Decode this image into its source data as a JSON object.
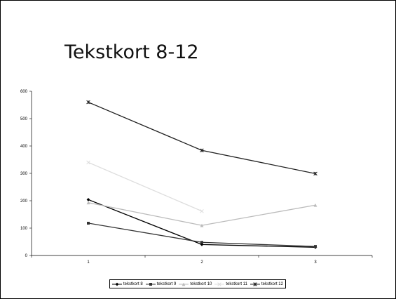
{
  "slide": {
    "title": "Tekstkort 8-12"
  },
  "chart_data": {
    "type": "line",
    "title": "",
    "xlabel": "",
    "ylabel": "",
    "categories": [
      "1",
      "2",
      "3"
    ],
    "ylim": [
      0,
      600
    ],
    "yticks": [
      0,
      100,
      200,
      300,
      400,
      500,
      600
    ],
    "grid": false,
    "legend_position": "bottom",
    "series": [
      {
        "name": "tekstkort 8",
        "values": [
          204,
          40,
          30
        ],
        "color": "#000000",
        "marker": "diamond"
      },
      {
        "name": "tekstkort 9",
        "values": [
          118,
          48,
          33
        ],
        "color": "#333333",
        "marker": "square"
      },
      {
        "name": "tekstkort 10",
        "values": [
          193,
          110,
          184
        ],
        "color": "#bbbbbb",
        "marker": "triangle"
      },
      {
        "name": "tekstkort 11",
        "values": [
          340,
          162,
          null
        ],
        "color": "#dddddd",
        "marker": "x"
      },
      {
        "name": "tekstkort 12",
        "values": [
          560,
          384,
          299
        ],
        "color": "#222222",
        "marker": "star"
      }
    ]
  }
}
